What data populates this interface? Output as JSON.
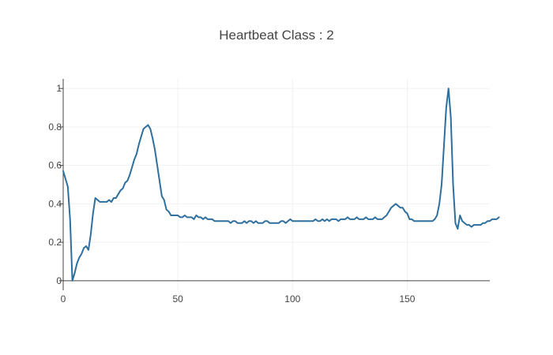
{
  "chart_data": {
    "type": "line",
    "title": "Heartbeat Class : 2",
    "xlabel": "",
    "ylabel": "",
    "xlim": [
      0,
      186
    ],
    "ylim": [
      -0.05,
      1.05
    ],
    "x_ticks": [
      0,
      50,
      100,
      150
    ],
    "x_tick_labels": [
      "0",
      "50",
      "100",
      "150"
    ],
    "y_ticks": [
      0,
      0.2,
      0.4,
      0.6,
      0.8,
      1
    ],
    "y_tick_labels": [
      "0",
      "0.2",
      "0.4",
      "0.6",
      "0.8",
      "1"
    ],
    "grid": true,
    "legend": "none",
    "series": [
      {
        "color": "#2e6f9e",
        "x_start": 0,
        "x_step": 1,
        "values": [
          0.57,
          0.53,
          0.49,
          0.32,
          0.0,
          0.04,
          0.09,
          0.12,
          0.14,
          0.17,
          0.18,
          0.16,
          0.24,
          0.35,
          0.43,
          0.42,
          0.41,
          0.41,
          0.41,
          0.41,
          0.42,
          0.41,
          0.43,
          0.43,
          0.45,
          0.47,
          0.48,
          0.51,
          0.52,
          0.55,
          0.59,
          0.63,
          0.66,
          0.71,
          0.75,
          0.79,
          0.8,
          0.81,
          0.79,
          0.74,
          0.68,
          0.6,
          0.52,
          0.44,
          0.42,
          0.37,
          0.36,
          0.34,
          0.34,
          0.34,
          0.34,
          0.33,
          0.33,
          0.34,
          0.33,
          0.33,
          0.33,
          0.32,
          0.34,
          0.33,
          0.33,
          0.32,
          0.33,
          0.32,
          0.32,
          0.32,
          0.31,
          0.31,
          0.31,
          0.31,
          0.31,
          0.31,
          0.31,
          0.3,
          0.31,
          0.31,
          0.3,
          0.3,
          0.3,
          0.31,
          0.3,
          0.31,
          0.31,
          0.3,
          0.31,
          0.3,
          0.3,
          0.3,
          0.31,
          0.31,
          0.3,
          0.3,
          0.3,
          0.3,
          0.3,
          0.31,
          0.31,
          0.3,
          0.31,
          0.32,
          0.31,
          0.31,
          0.31,
          0.31,
          0.31,
          0.31,
          0.31,
          0.31,
          0.31,
          0.31,
          0.32,
          0.31,
          0.31,
          0.32,
          0.31,
          0.32,
          0.31,
          0.32,
          0.32,
          0.32,
          0.31,
          0.32,
          0.32,
          0.32,
          0.33,
          0.32,
          0.32,
          0.32,
          0.33,
          0.32,
          0.32,
          0.32,
          0.33,
          0.32,
          0.32,
          0.32,
          0.33,
          0.32,
          0.32,
          0.32,
          0.33,
          0.34,
          0.36,
          0.38,
          0.39,
          0.4,
          0.39,
          0.38,
          0.38,
          0.36,
          0.35,
          0.32,
          0.32,
          0.31,
          0.31,
          0.31,
          0.31,
          0.31,
          0.31,
          0.31,
          0.31,
          0.31,
          0.32,
          0.34,
          0.4,
          0.5,
          0.7,
          0.9,
          1.0,
          0.85,
          0.5,
          0.3,
          0.27,
          0.34,
          0.31,
          0.3,
          0.29,
          0.29,
          0.28,
          0.29,
          0.29,
          0.29,
          0.29,
          0.3,
          0.3,
          0.31,
          0.31,
          0.32,
          0.32,
          0.32,
          0.33
        ]
      }
    ]
  }
}
